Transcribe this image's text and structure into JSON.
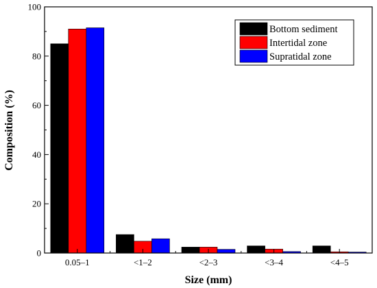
{
  "chart_data": {
    "type": "bar",
    "xlabel": "Size (mm)",
    "ylabel": "Composition (%)",
    "ylim": [
      0,
      100
    ],
    "yticks": [
      "0",
      "20",
      "40",
      "60",
      "80",
      "100"
    ],
    "categories": [
      "0.05–1",
      "<1–2",
      "<2–3",
      "<3–4",
      "<4–5"
    ],
    "series": [
      {
        "name": "Bottom sediment",
        "color": "#000000",
        "values": [
          85,
          7.5,
          2.4,
          2.9,
          2.9
        ]
      },
      {
        "name": "Intertidal zone",
        "color": "#ff0000",
        "values": [
          91,
          4.8,
          2.4,
          1.6,
          0.5
        ]
      },
      {
        "name": "Supratidal zone",
        "color": "#0000ff",
        "values": [
          91.5,
          5.8,
          1.5,
          0.6,
          0.4
        ]
      }
    ],
    "grid": false,
    "legend_position": "top-right"
  }
}
